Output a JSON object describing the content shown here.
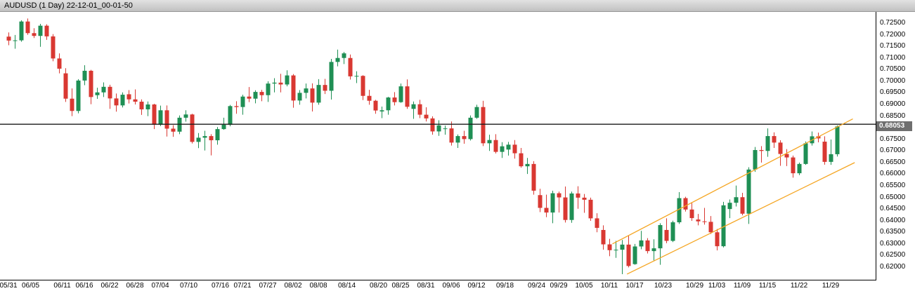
{
  "window": {
    "title": "AUDUSD (1 Day) 22-12-01_00-01-50"
  },
  "chart_data": {
    "type": "candlestick",
    "symbol": "AUDUSD",
    "period": "1 Day",
    "title": "AUDUSD (1 Day) 22-12-01_00-01-50",
    "columns": [
      "date",
      "open",
      "high",
      "low",
      "close"
    ],
    "candles": [
      [
        "05/31",
        0.7192,
        0.721,
        0.7155,
        0.7175
      ],
      [
        "06/01",
        0.7175,
        0.7199,
        0.714,
        0.7176
      ],
      [
        "06/02",
        0.7176,
        0.7262,
        0.717,
        0.7257
      ],
      [
        "06/03",
        0.7257,
        0.727,
        0.72,
        0.7207
      ],
      [
        "06/06",
        0.7207,
        0.7228,
        0.7186,
        0.7195
      ],
      [
        "06/07",
        0.7195,
        0.7247,
        0.7148,
        0.7239
      ],
      [
        "06/08",
        0.7239,
        0.7245,
        0.7178,
        0.7193
      ],
      [
        "06/09",
        0.7193,
        0.7203,
        0.7086,
        0.7098
      ],
      [
        "06/10",
        0.7098,
        0.712,
        0.7034,
        0.7054
      ],
      [
        "06/13",
        0.7034,
        0.7056,
        0.6911,
        0.6925
      ],
      [
        "06/14",
        0.6925,
        0.6969,
        0.685,
        0.6872
      ],
      [
        "06/15",
        0.6872,
        0.7009,
        0.6862,
        0.7003
      ],
      [
        "06/16",
        0.7003,
        0.7069,
        0.6983,
        0.7045
      ],
      [
        "06/17",
        0.7045,
        0.7049,
        0.6901,
        0.6932
      ],
      [
        "06/20",
        0.694,
        0.6972,
        0.6924,
        0.6952
      ],
      [
        "06/21",
        0.6952,
        0.6995,
        0.6932,
        0.6976
      ],
      [
        "06/22",
        0.6976,
        0.6985,
        0.6881,
        0.6926
      ],
      [
        "06/23",
        0.6926,
        0.6947,
        0.6869,
        0.6896
      ],
      [
        "06/24",
        0.6896,
        0.6952,
        0.6887,
        0.6942
      ],
      [
        "06/27",
        0.6944,
        0.6962,
        0.6904,
        0.6922
      ],
      [
        "06/28",
        0.6922,
        0.6965,
        0.69,
        0.6912
      ],
      [
        "06/29",
        0.6912,
        0.6922,
        0.6855,
        0.6879
      ],
      [
        "06/30",
        0.6879,
        0.6913,
        0.685,
        0.69
      ],
      [
        "07/01",
        0.69,
        0.6903,
        0.6794,
        0.6813
      ],
      [
        "07/04",
        0.6813,
        0.6895,
        0.6807,
        0.6875
      ],
      [
        "07/05",
        0.6875,
        0.6896,
        0.6762,
        0.6796
      ],
      [
        "07/06",
        0.6796,
        0.6811,
        0.6761,
        0.6783
      ],
      [
        "07/07",
        0.6783,
        0.6853,
        0.6772,
        0.6843
      ],
      [
        "07/08",
        0.6843,
        0.6875,
        0.6826,
        0.6857
      ],
      [
        "07/11",
        0.6857,
        0.686,
        0.6732,
        0.6739
      ],
      [
        "07/12",
        0.6739,
        0.6777,
        0.6712,
        0.6757
      ],
      [
        "07/13",
        0.6757,
        0.6787,
        0.6702,
        0.6764
      ],
      [
        "07/14",
        0.6764,
        0.6772,
        0.6681,
        0.6746
      ],
      [
        "07/15",
        0.6746,
        0.6803,
        0.6727,
        0.6794
      ],
      [
        "07/18",
        0.6794,
        0.6843,
        0.6791,
        0.6813
      ],
      [
        "07/19",
        0.6813,
        0.6898,
        0.6806,
        0.6893
      ],
      [
        "07/20",
        0.6893,
        0.6914,
        0.686,
        0.6889
      ],
      [
        "07/21",
        0.6889,
        0.6942,
        0.6856,
        0.6934
      ],
      [
        "07/22",
        0.6934,
        0.6975,
        0.691,
        0.6925
      ],
      [
        "07/25",
        0.6925,
        0.6961,
        0.6905,
        0.6954
      ],
      [
        "07/26",
        0.6954,
        0.6963,
        0.6914,
        0.694
      ],
      [
        "07/27",
        0.694,
        0.7,
        0.6911,
        0.699
      ],
      [
        "07/28",
        0.699,
        0.7013,
        0.6952,
        0.6994
      ],
      [
        "07/29",
        0.6994,
        0.7032,
        0.6952,
        0.6986
      ],
      [
        "08/01",
        0.6986,
        0.7047,
        0.6978,
        0.7025
      ],
      [
        "08/02",
        0.7025,
        0.7031,
        0.6886,
        0.6917
      ],
      [
        "08/03",
        0.6917,
        0.6962,
        0.6899,
        0.695
      ],
      [
        "08/04",
        0.695,
        0.699,
        0.6926,
        0.6969
      ],
      [
        "08/05",
        0.6969,
        0.6991,
        0.687,
        0.6908
      ],
      [
        "08/08",
        0.6908,
        0.7009,
        0.6899,
        0.6984
      ],
      [
        "08/09",
        0.6984,
        0.701,
        0.6945,
        0.6959
      ],
      [
        "08/10",
        0.6959,
        0.7096,
        0.6921,
        0.7083
      ],
      [
        "08/11",
        0.7083,
        0.7136,
        0.7064,
        0.71
      ],
      [
        "08/12",
        0.71,
        0.7126,
        0.7074,
        0.712
      ],
      [
        "08/15",
        0.71,
        0.7115,
        0.7007,
        0.7021
      ],
      [
        "08/16",
        0.7021,
        0.7043,
        0.6992,
        0.7023
      ],
      [
        "08/17",
        0.7023,
        0.7026,
        0.6919,
        0.6937
      ],
      [
        "08/18",
        0.6937,
        0.6963,
        0.6899,
        0.6916
      ],
      [
        "08/19",
        0.6916,
        0.692,
        0.686,
        0.6874
      ],
      [
        "08/22",
        0.687,
        0.6891,
        0.6841,
        0.6875
      ],
      [
        "08/23",
        0.6875,
        0.6933,
        0.6856,
        0.693
      ],
      [
        "08/24",
        0.693,
        0.6953,
        0.6896,
        0.691
      ],
      [
        "08/25",
        0.691,
        0.699,
        0.6907,
        0.6978
      ],
      [
        "08/26",
        0.6978,
        0.7008,
        0.6881,
        0.689
      ],
      [
        "08/29",
        0.6881,
        0.6913,
        0.6838,
        0.6901
      ],
      [
        "08/30",
        0.6901,
        0.692,
        0.6841,
        0.6856
      ],
      [
        "08/31",
        0.6856,
        0.6888,
        0.6827,
        0.684
      ],
      [
        "09/01",
        0.684,
        0.6849,
        0.677,
        0.6784
      ],
      [
        "09/02",
        0.6784,
        0.6832,
        0.6765,
        0.681
      ],
      [
        "09/05",
        0.6795,
        0.6809,
        0.677,
        0.6797
      ],
      [
        "09/06",
        0.6797,
        0.6827,
        0.6723,
        0.6736
      ],
      [
        "09/07",
        0.6736,
        0.6771,
        0.6713,
        0.6764
      ],
      [
        "09/08",
        0.6764,
        0.6787,
        0.6731,
        0.6751
      ],
      [
        "09/09",
        0.6751,
        0.6853,
        0.6745,
        0.6843
      ],
      [
        "09/12",
        0.6843,
        0.6899,
        0.6838,
        0.6889
      ],
      [
        "09/13",
        0.6889,
        0.6916,
        0.6721,
        0.6733
      ],
      [
        "09/14",
        0.6733,
        0.677,
        0.67,
        0.6747
      ],
      [
        "09/15",
        0.6747,
        0.6772,
        0.6689,
        0.6696
      ],
      [
        "09/16",
        0.6696,
        0.6738,
        0.667,
        0.672
      ],
      [
        "09/19",
        0.6706,
        0.6739,
        0.668,
        0.6727
      ],
      [
        "09/20",
        0.6727,
        0.6747,
        0.6667,
        0.669
      ],
      [
        "09/21",
        0.669,
        0.6713,
        0.6628,
        0.6634
      ],
      [
        "09/22",
        0.6634,
        0.667,
        0.6601,
        0.6644
      ],
      [
        "09/23",
        0.6644,
        0.6656,
        0.6512,
        0.6529
      ],
      [
        "09/26",
        0.651,
        0.6537,
        0.6437,
        0.6455
      ],
      [
        "09/27",
        0.6455,
        0.6512,
        0.6415,
        0.6435
      ],
      [
        "09/28",
        0.6435,
        0.6529,
        0.6389,
        0.6518
      ],
      [
        "09/29",
        0.6518,
        0.6525,
        0.6435,
        0.65
      ],
      [
        "09/30",
        0.65,
        0.6547,
        0.6392,
        0.6403
      ],
      [
        "10/03",
        0.6403,
        0.6525,
        0.6391,
        0.6517
      ],
      [
        "10/04",
        0.6517,
        0.6548,
        0.6451,
        0.6499
      ],
      [
        "10/05",
        0.6499,
        0.6515,
        0.6434,
        0.649
      ],
      [
        "10/06",
        0.649,
        0.6499,
        0.6399,
        0.641
      ],
      [
        "10/07",
        0.641,
        0.6432,
        0.635,
        0.6369
      ],
      [
        "10/10",
        0.636,
        0.638,
        0.6275,
        0.6298
      ],
      [
        "10/11",
        0.6298,
        0.6322,
        0.6247,
        0.6273
      ],
      [
        "10/12",
        0.6273,
        0.6313,
        0.624,
        0.6275
      ],
      [
        "10/13",
        0.6275,
        0.6317,
        0.617,
        0.6297
      ],
      [
        "10/14",
        0.6297,
        0.6337,
        0.6199,
        0.6205
      ],
      [
        "10/17",
        0.6213,
        0.63,
        0.621,
        0.6289
      ],
      [
        "10/18",
        0.6289,
        0.6356,
        0.6277,
        0.6315
      ],
      [
        "10/19",
        0.6315,
        0.6325,
        0.6259,
        0.6269
      ],
      [
        "10/20",
        0.6269,
        0.632,
        0.6229,
        0.6281
      ],
      [
        "10/21",
        0.6281,
        0.6389,
        0.621,
        0.6381
      ],
      [
        "10/24",
        0.636,
        0.641,
        0.6303,
        0.6313
      ],
      [
        "10/25",
        0.6313,
        0.64,
        0.6308,
        0.6393
      ],
      [
        "10/26",
        0.6393,
        0.6523,
        0.6386,
        0.6497
      ],
      [
        "10/27",
        0.6497,
        0.6503,
        0.6439,
        0.6448
      ],
      [
        "10/28",
        0.6448,
        0.6478,
        0.6399,
        0.6411
      ],
      [
        "10/31",
        0.6405,
        0.6429,
        0.638,
        0.6397
      ],
      [
        "11/01",
        0.6397,
        0.6455,
        0.6383,
        0.6395
      ],
      [
        "11/02",
        0.6395,
        0.642,
        0.6343,
        0.635
      ],
      [
        "11/03",
        0.635,
        0.6364,
        0.6272,
        0.629
      ],
      [
        "11/04",
        0.629,
        0.6481,
        0.6285,
        0.6466
      ],
      [
        "11/07",
        0.645,
        0.6491,
        0.6411,
        0.6477
      ],
      [
        "11/08",
        0.6477,
        0.6551,
        0.6461,
        0.6501
      ],
      [
        "11/09",
        0.6501,
        0.652,
        0.6423,
        0.643
      ],
      [
        "11/10",
        0.643,
        0.663,
        0.6386,
        0.662
      ],
      [
        "11/11",
        0.662,
        0.6717,
        0.661,
        0.6704
      ],
      [
        "11/14",
        0.6704,
        0.6721,
        0.665,
        0.67
      ],
      [
        "11/15",
        0.67,
        0.6797,
        0.6675,
        0.6764
      ],
      [
        "11/16",
        0.6764,
        0.678,
        0.6713,
        0.6736
      ],
      [
        "11/17",
        0.6736,
        0.6746,
        0.6636,
        0.6687
      ],
      [
        "11/18",
        0.6687,
        0.6708,
        0.6635,
        0.6672
      ],
      [
        "11/21",
        0.6672,
        0.668,
        0.6585,
        0.6604
      ],
      [
        "11/22",
        0.6604,
        0.665,
        0.6596,
        0.6644
      ],
      [
        "11/23",
        0.6644,
        0.6741,
        0.664,
        0.6733
      ],
      [
        "11/24",
        0.6733,
        0.6784,
        0.6723,
        0.6763
      ],
      [
        "11/25",
        0.6763,
        0.6779,
        0.6737,
        0.6754
      ],
      [
        "11/28",
        0.674,
        0.6763,
        0.6641,
        0.6653
      ],
      [
        "11/29",
        0.6653,
        0.6749,
        0.664,
        0.6686
      ],
      [
        "11/30",
        0.6686,
        0.681,
        0.6676,
        0.68053
      ]
    ],
    "y_axis": {
      "min": 0.62,
      "max": 0.725,
      "step": 0.005,
      "decimals": 5,
      "ticks": [
        "0.72500",
        "0.72000",
        "0.71500",
        "0.71000",
        "0.70500",
        "0.70000",
        "0.69500",
        "0.69000",
        "0.68500",
        "0.67500",
        "0.67000",
        "0.66500",
        "0.66000",
        "0.65500",
        "0.65000",
        "0.64500",
        "0.64000",
        "0.63500",
        "0.63000",
        "0.62500",
        "0.62000"
      ]
    },
    "x_axis": {
      "labels": [
        [
          "05/31",
          0
        ],
        [
          "06/05",
          3.5
        ],
        [
          "06/11",
          8.5
        ],
        [
          "06/16",
          12
        ],
        [
          "06/22",
          16
        ],
        [
          "06/28",
          20
        ],
        [
          "07/04",
          24
        ],
        [
          "07/10",
          28.5
        ],
        [
          "07/16",
          33.5
        ],
        [
          "07/21",
          37
        ],
        [
          "07/27",
          41
        ],
        [
          "08/02",
          45
        ],
        [
          "08/08",
          49
        ],
        [
          "08/14",
          53.5
        ],
        [
          "08/20",
          58.5
        ],
        [
          "08/25",
          62
        ],
        [
          "08/31",
          66
        ],
        [
          "09/06",
          70
        ],
        [
          "09/12",
          74
        ],
        [
          "09/18",
          78.5
        ],
        [
          "09/24",
          83.5
        ],
        [
          "09/29",
          87
        ],
        [
          "10/05",
          91
        ],
        [
          "10/11",
          95
        ],
        [
          "10/17",
          99
        ],
        [
          "10/23",
          103.5
        ],
        [
          "10/29",
          108.5
        ],
        [
          "11/03",
          112
        ],
        [
          "11/09",
          116
        ],
        [
          "11/15",
          120
        ],
        [
          "11/22",
          125
        ],
        [
          "11/29",
          130
        ]
      ]
    },
    "price_marker": {
      "text": "0.68053",
      "price": 0.68053
    },
    "horizontal_line": {
      "price": 0.6815
    },
    "trendlines": [
      {
        "i1": 95.5,
        "p1": 0.63,
        "i2": 133.5,
        "p2": 0.6838
      },
      {
        "i1": 97.8,
        "p1": 0.617,
        "i2": 133.8,
        "p2": 0.665
      }
    ],
    "grid": "off",
    "legend": "none",
    "colors": {
      "up": "#1f8f54",
      "down": "#d93832",
      "trendline": "#f5a623",
      "hline": "#1a1a1a",
      "marker_bg": "#6f6f6f",
      "marker_fg": "#ffffff",
      "axis_text": "#000000",
      "plot_bg": "#ffffff",
      "titlebar_text": "#000000"
    }
  }
}
